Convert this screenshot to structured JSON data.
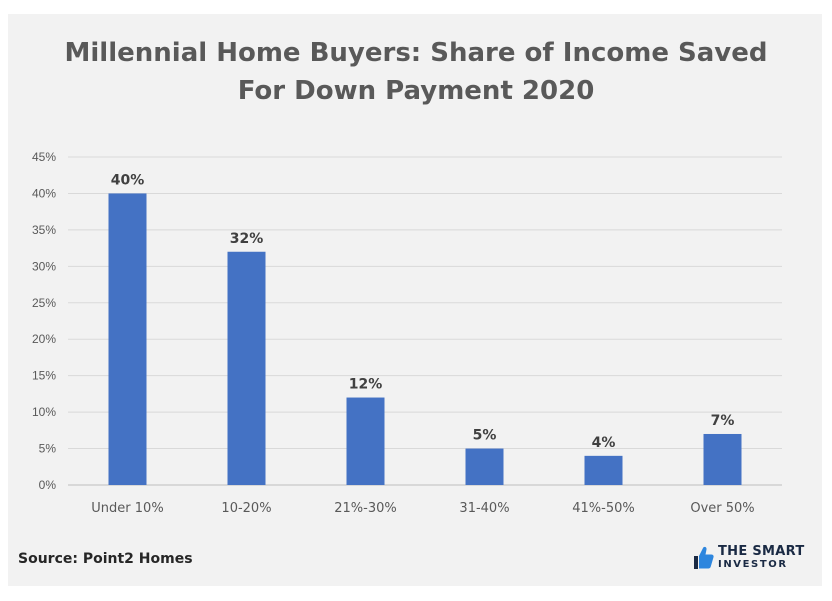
{
  "chart_data": {
    "type": "bar",
    "title_lines": [
      "Millennial Home Buyers: Share of Income Saved",
      "For Down Payment 2020"
    ],
    "categories": [
      "Under 10%",
      "10-20%",
      "21%-30%",
      "31-40%",
      "41%-50%",
      "Over 50%"
    ],
    "values": [
      40,
      32,
      12,
      5,
      4,
      7
    ],
    "data_labels": [
      "40%",
      "32%",
      "12%",
      "5%",
      "4%",
      "7%"
    ],
    "y_ticks": [
      0,
      5,
      10,
      15,
      20,
      25,
      30,
      35,
      40,
      45
    ],
    "y_tick_labels": [
      "0%",
      "5%",
      "10%",
      "15%",
      "20%",
      "25%",
      "30%",
      "35%",
      "40%",
      "45%"
    ],
    "ylim": [
      0,
      45
    ],
    "grid": true,
    "legend": "none",
    "bar_color": "#4472c4"
  },
  "footer": {
    "source": "Source: Point2 Homes"
  },
  "brand": {
    "line1": "THE SMART",
    "line2": "INVESTOR",
    "icon": "thumbs-up-icon",
    "icon_color": "#2e86de"
  }
}
